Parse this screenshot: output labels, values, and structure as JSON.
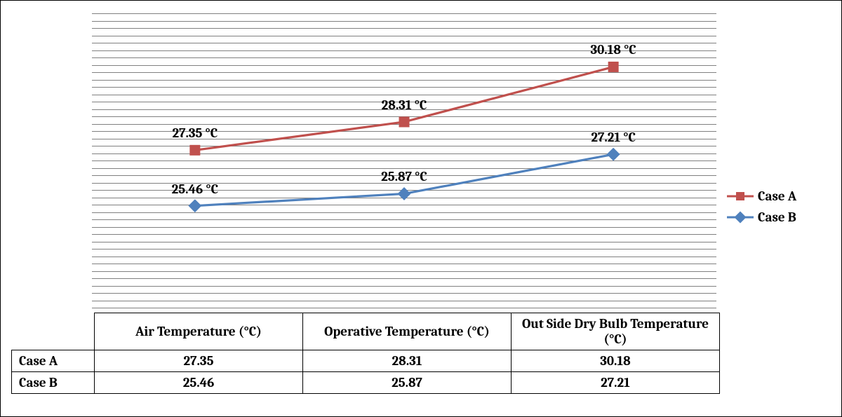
{
  "chart": {
    "type": "line-with-markers",
    "categories": [
      "Air Temperature (°C)",
      "Operative Temperature (°C)",
      "Out Side Dry Bulb Temperature (°C)"
    ],
    "y_min": 22,
    "y_max": 32,
    "gridline_step": 0.25,
    "gridline_color": "#808080",
    "background_color": "#ffffff",
    "label_fontsize": 19,
    "label_fontweight": 700,
    "label_unit": " °C",
    "cat_x_positions_pct": [
      16.5,
      50,
      83.5
    ],
    "series": [
      {
        "name": "Case A",
        "values": [
          27.35,
          28.31,
          30.18
        ],
        "color": "#c0504d",
        "line_width": 3.2,
        "marker": "square",
        "marker_size": 14,
        "label_dy": -35
      },
      {
        "name": "Case B",
        "values": [
          25.46,
          25.87,
          27.21
        ],
        "color": "#4f81bd",
        "line_width": 3.2,
        "marker": "diamond",
        "marker_size": 14,
        "label_dy": -35
      }
    ]
  },
  "legend": {
    "fontsize": 19,
    "items": [
      {
        "label": "Case A",
        "series_index": 0
      },
      {
        "label": "Case B",
        "series_index": 1
      }
    ]
  },
  "table": {
    "fontsize": 19,
    "columns": [
      "Air Temperature (°C)",
      "Operative Temperature (°C)",
      "Out Side Dry Bulb Temperature (°C)"
    ],
    "rows": [
      {
        "label": "Case A",
        "cells": [
          "27.35",
          "28.31",
          "30.18"
        ]
      },
      {
        "label": "Case B",
        "cells": [
          "25.46",
          "25.87",
          "27.21"
        ]
      }
    ]
  }
}
